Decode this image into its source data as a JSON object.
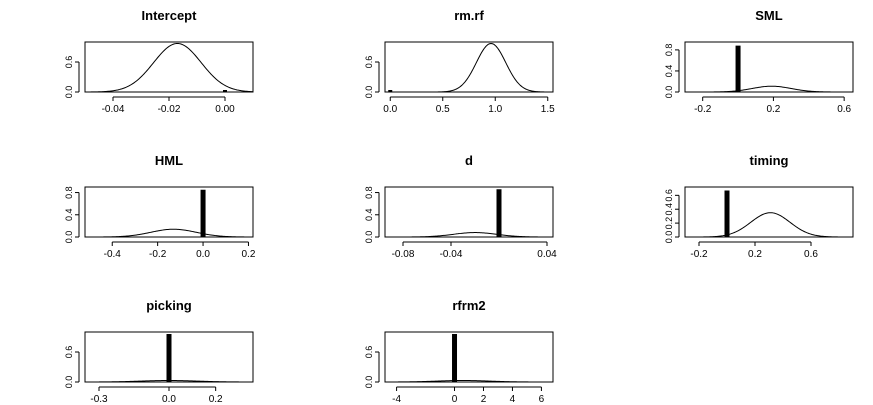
{
  "chart_data": [
    {
      "type": "line",
      "title": "Intercept",
      "xlim": [
        -0.05,
        0.01
      ],
      "ylim": [
        0,
        1.0
      ],
      "xticks": [
        "-0.04",
        "-0.02",
        "0.00"
      ],
      "xtick_values": [
        -0.04,
        -0.02,
        0.0
      ],
      "yticks": [
        "0.0",
        "0.6"
      ],
      "ytick_values": [
        0.0,
        0.6
      ],
      "density": {
        "mean": -0.017,
        "sd": 0.0085,
        "peak": 0.97
      },
      "point_mass": {
        "x": 0.0,
        "height": 0.04
      }
    },
    {
      "type": "line",
      "title": "rm.rf",
      "xlim": [
        -0.05,
        1.55
      ],
      "ylim": [
        0,
        1.0
      ],
      "xticks": [
        "0.0",
        "0.5",
        "1.0",
        "1.5"
      ],
      "xtick_values": [
        0.0,
        0.5,
        1.0,
        1.5
      ],
      "yticks": [
        "0.0",
        "0.6"
      ],
      "ytick_values": [
        0.0,
        0.6
      ],
      "density": {
        "mean": 0.96,
        "sd": 0.14,
        "peak": 0.97
      },
      "point_mass": {
        "x": 0.0,
        "height": 0.04
      }
    },
    {
      "type": "line",
      "title": "SML",
      "xlim": [
        -0.3,
        0.65
      ],
      "ylim": [
        0,
        0.95
      ],
      "xticks": [
        "-0.2",
        "0.2",
        "0.6"
      ],
      "xtick_values": [
        -0.2,
        0.2,
        0.6
      ],
      "yticks": [
        "0.0",
        "0.4",
        "0.8"
      ],
      "ytick_values": [
        0.0,
        0.4,
        0.8
      ],
      "density": {
        "mean": 0.19,
        "sd": 0.11,
        "peak": 0.11
      },
      "point_mass": {
        "x": 0.0,
        "height": 0.88
      }
    },
    {
      "type": "line",
      "title": "HML",
      "xlim": [
        -0.52,
        0.22
      ],
      "ylim": [
        0,
        0.9
      ],
      "xticks": [
        "-0.4",
        "-0.2",
        "0.0",
        "0.2"
      ],
      "xtick_values": [
        -0.4,
        -0.2,
        0.0,
        0.2
      ],
      "yticks": [
        "0.0",
        "0.4",
        "0.8"
      ],
      "ytick_values": [
        0.0,
        0.4,
        0.8
      ],
      "density": {
        "mean": -0.13,
        "sd": 0.1,
        "peak": 0.14
      },
      "point_mass": {
        "x": 0.0,
        "height": 0.85
      }
    },
    {
      "type": "line",
      "title": "d",
      "xlim": [
        -0.095,
        0.045
      ],
      "ylim": [
        0,
        0.9
      ],
      "xticks": [
        "-0.08",
        "-0.04",
        "0.04"
      ],
      "xtick_values": [
        -0.08,
        -0.04,
        0.04
      ],
      "yticks": [
        "0.0",
        "0.4",
        "0.8"
      ],
      "ytick_values": [
        0.0,
        0.4,
        0.8
      ],
      "density": {
        "mean": -0.02,
        "sd": 0.018,
        "peak": 0.08
      },
      "point_mass": {
        "x": 0.0,
        "height": 0.86
      }
    },
    {
      "type": "line",
      "title": "timing",
      "xlim": [
        -0.3,
        0.9
      ],
      "ylim": [
        0,
        0.72
      ],
      "xticks": [
        "-0.2",
        "0.2",
        "0.6"
      ],
      "xtick_values": [
        -0.2,
        0.2,
        0.6
      ],
      "yticks": [
        "0.0",
        "0.2",
        "0.4",
        "0.6"
      ],
      "ytick_values": [
        0.0,
        0.2,
        0.4,
        0.6
      ],
      "density": {
        "mean": 0.31,
        "sd": 0.14,
        "peak": 0.35
      },
      "point_mass": {
        "x": 0.0,
        "height": 0.67
      }
    },
    {
      "type": "line",
      "title": "picking",
      "xlim": [
        -0.36,
        0.36
      ],
      "ylim": [
        0,
        1.0
      ],
      "xticks": [
        "-0.3",
        "0.0",
        "0.2"
      ],
      "xtick_values": [
        -0.3,
        0.0,
        0.2
      ],
      "yticks": [
        "0.0",
        "0.6"
      ],
      "ytick_values": [
        0.0,
        0.6
      ],
      "density": {
        "mean": 0.0,
        "sd": 0.12,
        "peak": 0.03
      },
      "point_mass": {
        "x": 0.0,
        "height": 0.96
      }
    },
    {
      "type": "line",
      "title": "rfrm2",
      "xlim": [
        -4.8,
        6.8
      ],
      "ylim": [
        0,
        1.0
      ],
      "xticks": [
        "-4",
        "0",
        "2",
        "4",
        "6"
      ],
      "xtick_values": [
        -4,
        0,
        2,
        4,
        6
      ],
      "yticks": [
        "0.0",
        "0.6"
      ],
      "ytick_values": [
        0.0,
        0.6
      ],
      "density": {
        "mean": 0.6,
        "sd": 1.8,
        "peak": 0.03
      },
      "point_mass": {
        "x": 0.0,
        "height": 0.96
      }
    }
  ],
  "colors": {
    "line": "#000000",
    "axis": "#000000",
    "background": "#ffffff"
  }
}
